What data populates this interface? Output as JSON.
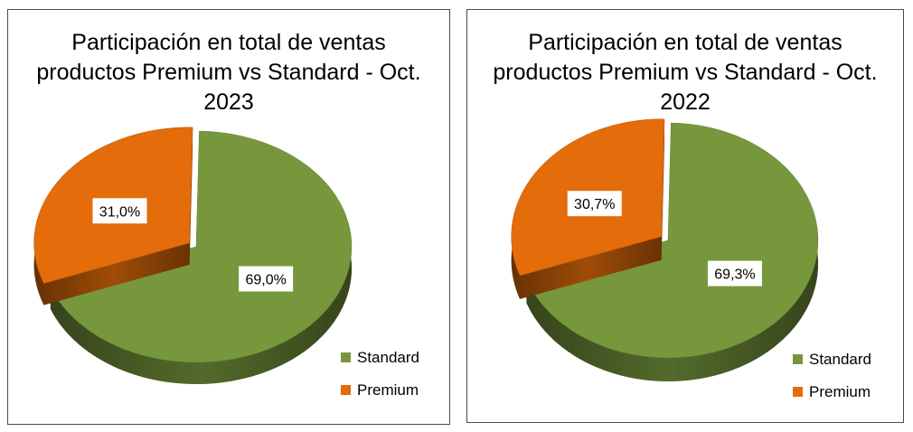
{
  "colors": {
    "Standard": "#77973d",
    "Premium": "#e46c0a"
  },
  "chart_data": [
    {
      "type": "pie",
      "title": "Participación en total de ventas productos Premium vs Standard - Oct. 2023",
      "categories": [
        "Standard",
        "Premium"
      ],
      "values": [
        69.0,
        31.0
      ],
      "data_labels": [
        "69,0%",
        "31,0%"
      ],
      "legend": [
        "Standard",
        "Premium"
      ],
      "legend_position": "bottom-right",
      "exploded": "Premium"
    },
    {
      "type": "pie",
      "title": "Participación en total de ventas productos Premium vs Standard - Oct. 2022",
      "categories": [
        "Standard",
        "Premium"
      ],
      "values": [
        69.3,
        30.7
      ],
      "data_labels": [
        "69,3%",
        "30,7%"
      ],
      "legend": [
        "Standard",
        "Premium"
      ],
      "legend_position": "bottom-right",
      "exploded": "Premium"
    }
  ]
}
